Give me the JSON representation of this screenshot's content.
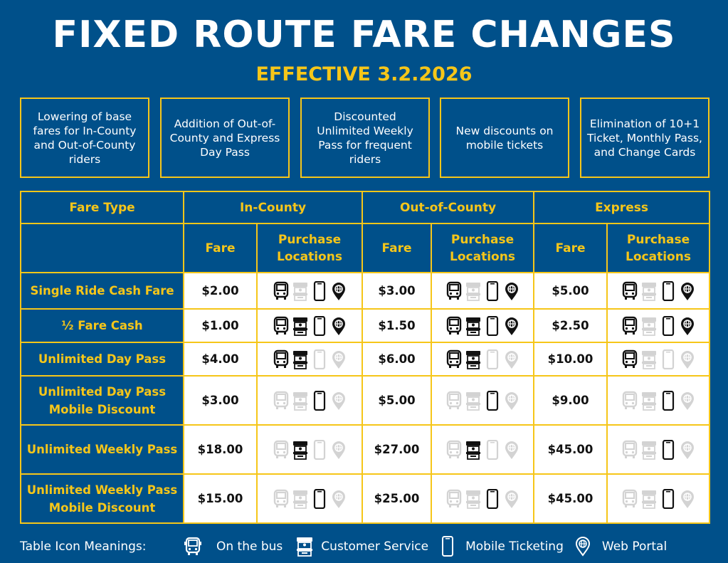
{
  "header": {
    "title": "FIXED ROUTE FARE CHANGES",
    "subtitle": "EFFECTIVE 3.2.2026"
  },
  "highlights": [
    "Lowering of base fares for In-County and Out-of-County riders",
    "Addition of Out-of-County and Express Day Pass",
    "Discounted Unlimited Weekly Pass for frequent riders",
    "New discounts on mobile tickets",
    "Elimination of 10+1 Ticket, Monthly Pass, and Change Cards"
  ],
  "table": {
    "fare_type_header": "Fare Type",
    "groups": [
      "In-County",
      "Out-of-County",
      "Express"
    ],
    "fare_header": "Fare",
    "purchase_header": "Purchase Locations",
    "rows": [
      {
        "label": "Single Ride Cash Fare",
        "fares": [
          "$2.00",
          "$3.00",
          "$5.00"
        ],
        "available": [
          [
            1,
            0,
            1,
            1
          ],
          [
            1,
            0,
            1,
            1
          ],
          [
            1,
            0,
            1,
            1
          ]
        ]
      },
      {
        "label": "½ Fare Cash",
        "fares": [
          "$1.00",
          "$1.50",
          "$2.50"
        ],
        "available": [
          [
            1,
            1,
            1,
            1
          ],
          [
            1,
            1,
            1,
            1
          ],
          [
            1,
            0,
            1,
            1
          ]
        ]
      },
      {
        "label": "Unlimited Day Pass",
        "fares": [
          "$4.00",
          "$6.00",
          "$10.00"
        ],
        "available": [
          [
            1,
            1,
            0,
            0
          ],
          [
            1,
            1,
            0,
            0
          ],
          [
            1,
            0,
            0,
            0
          ]
        ]
      },
      {
        "label": "Unlimited Day Pass Mobile Discount",
        "fares": [
          "$3.00",
          "$5.00",
          "$9.00"
        ],
        "available": [
          [
            0,
            0,
            1,
            0
          ],
          [
            0,
            0,
            1,
            0
          ],
          [
            0,
            0,
            1,
            0
          ]
        ]
      },
      {
        "label": "Unlimited Weekly Pass",
        "fares": [
          "$18.00",
          "$27.00",
          "$45.00"
        ],
        "available": [
          [
            0,
            1,
            0,
            0
          ],
          [
            0,
            1,
            0,
            0
          ],
          [
            0,
            0,
            1,
            0
          ]
        ]
      },
      {
        "label": "Unlimited Weekly Pass Mobile Discount",
        "fares": [
          "$15.00",
          "$25.00",
          "$45.00"
        ],
        "available": [
          [
            0,
            0,
            1,
            0
          ],
          [
            0,
            0,
            1,
            0
          ],
          [
            0,
            0,
            1,
            0
          ]
        ]
      }
    ]
  },
  "legend": {
    "title": "Table Icon Meanings:",
    "items": [
      {
        "icon": "bus-icon",
        "label": "On the bus"
      },
      {
        "icon": "customer-service-icon",
        "label": "Customer Service"
      },
      {
        "icon": "mobile-phone-icon",
        "label": "Mobile Ticketing"
      },
      {
        "icon": "web-portal-icon",
        "label": "Web Portal"
      }
    ]
  },
  "colors": {
    "background": "#00508a",
    "accent": "#f6c619",
    "cell": "#ffffff",
    "text_dark": "#111111"
  }
}
